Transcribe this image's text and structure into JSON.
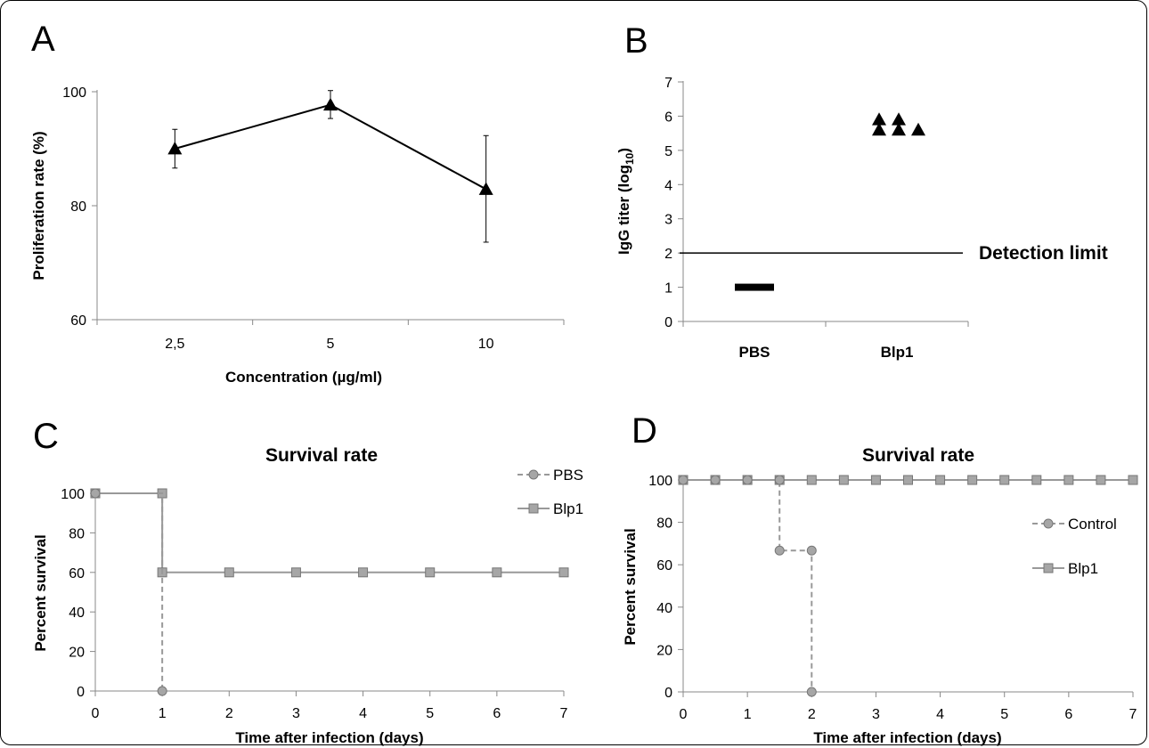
{
  "panels": {
    "a": "A",
    "b": "B",
    "c": "C",
    "d": "D"
  },
  "chart_data": [
    {
      "panel": "A",
      "type": "line",
      "title": "",
      "xlabel": "Concentration  (µg/ml)",
      "ylabel": "Proliferation  rate (%)",
      "categories": [
        "2,5",
        "5",
        "10"
      ],
      "values": [
        90,
        97.7,
        82.9
      ],
      "error_low": [
        86.6,
        95.3,
        73.6
      ],
      "error_high": [
        93.4,
        100.2,
        92.3
      ],
      "ylim": [
        60,
        100
      ],
      "yticks": [
        "60",
        "80",
        "100"
      ],
      "marker": "triangle",
      "grid": false
    },
    {
      "panel": "B",
      "type": "scatter",
      "title": "",
      "xlabel": "",
      "ylabel_main": "IgG titer (log",
      "ylabel_sub": "10",
      "ylabel_end": ")",
      "categories": [
        "PBS",
        "Blp1"
      ],
      "ylim": [
        0,
        7
      ],
      "yticks": [
        "0",
        "1",
        "2",
        "3",
        "4",
        "5",
        "6",
        "7"
      ],
      "pbs_value": 1.0,
      "blp1_points": [
        {
          "offset": 0,
          "y": 5.9
        },
        {
          "offset": 1,
          "y": 5.9
        },
        {
          "offset": 0,
          "y": 5.6
        },
        {
          "offset": 1,
          "y": 5.6
        },
        {
          "offset": 2,
          "y": 5.6
        }
      ],
      "detection_limit": 2,
      "detection_label": "Detection limit",
      "marker": "triangle",
      "grid": false
    },
    {
      "panel": "C",
      "type": "line",
      "title": "Survival rate",
      "xlabel": "Time after infection (days)",
      "ylabel": "Percent survival",
      "xlim": [
        0,
        7
      ],
      "xticks": [
        "0",
        "1",
        "2",
        "3",
        "4",
        "5",
        "6",
        "7"
      ],
      "ylim": [
        0,
        100
      ],
      "yticks": [
        "0",
        "20",
        "40",
        "60",
        "80",
        "100"
      ],
      "legend_position": "top-right",
      "series": [
        {
          "name": "PBS",
          "marker": "circle",
          "style": "dashed",
          "points": [
            [
              0,
              100
            ],
            [
              1,
              0
            ]
          ],
          "step_points": [
            [
              0,
              100
            ],
            [
              1,
              100
            ],
            [
              1,
              0
            ]
          ]
        },
        {
          "name": "Blp1",
          "marker": "square",
          "style": "solid",
          "points": [
            [
              0,
              100
            ],
            [
              1,
              100
            ],
            [
              1,
              60
            ],
            [
              2,
              60
            ],
            [
              3,
              60
            ],
            [
              4,
              60
            ],
            [
              5,
              60
            ],
            [
              6,
              60
            ],
            [
              7,
              60
            ]
          ]
        }
      ],
      "grid": false
    },
    {
      "panel": "D",
      "type": "line",
      "title": "Survival rate",
      "xlabel": "Time after infection (days)",
      "ylabel": "Percent survival",
      "xlim": [
        0,
        7
      ],
      "xticks": [
        "0",
        "1",
        "2",
        "3",
        "4",
        "5",
        "6",
        "7"
      ],
      "ylim": [
        0,
        100
      ],
      "yticks": [
        "0",
        "20",
        "40",
        "60",
        "80",
        "100"
      ],
      "legend_position": "right",
      "series": [
        {
          "name": "Control",
          "marker": "circle",
          "style": "dashed",
          "points": [
            [
              0,
              100
            ],
            [
              0.5,
              100
            ],
            [
              1,
              100
            ],
            [
              1.5,
              100
            ],
            [
              1.5,
              66.7
            ],
            [
              2,
              66.7
            ],
            [
              2,
              0
            ]
          ]
        },
        {
          "name": "Blp1",
          "marker": "square",
          "style": "solid",
          "points": [
            [
              0,
              100
            ],
            [
              0.5,
              100
            ],
            [
              1,
              100
            ],
            [
              1.5,
              100
            ],
            [
              2,
              100
            ],
            [
              2.5,
              100
            ],
            [
              3,
              100
            ],
            [
              3.5,
              100
            ],
            [
              4,
              100
            ],
            [
              4.5,
              100
            ],
            [
              5,
              100
            ],
            [
              5.5,
              100
            ],
            [
              6,
              100
            ],
            [
              6.5,
              100
            ],
            [
              7,
              100
            ]
          ]
        }
      ],
      "grid": false
    }
  ]
}
